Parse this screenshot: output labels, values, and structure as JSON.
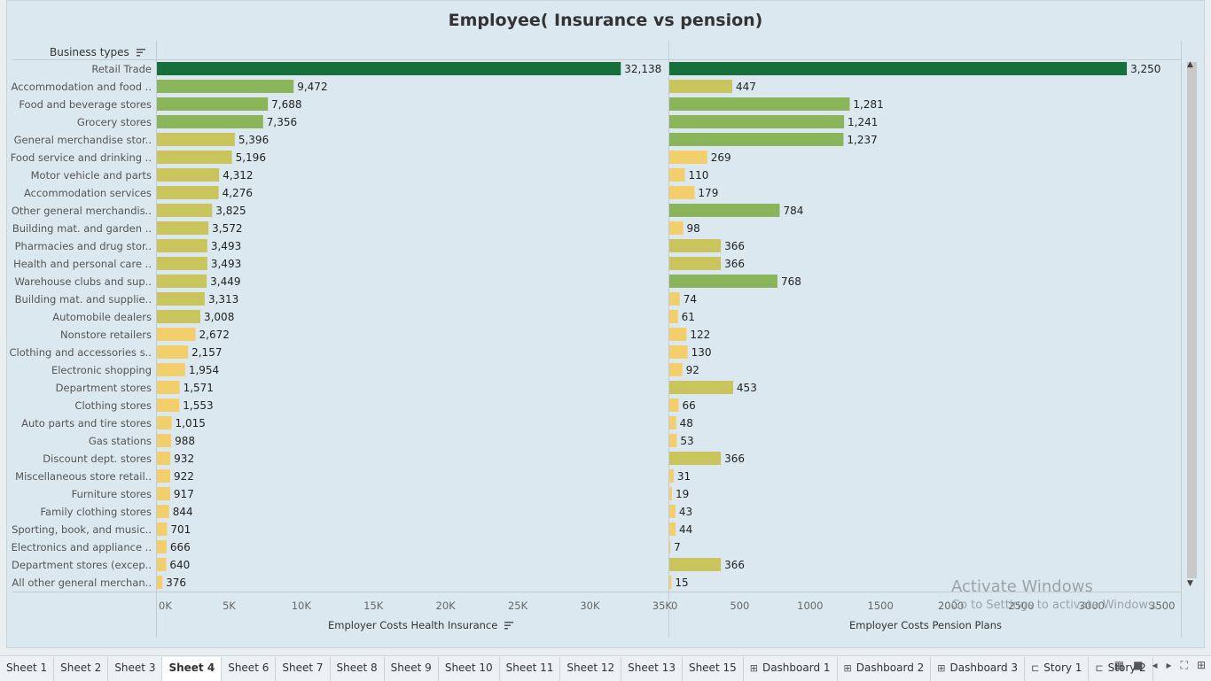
{
  "title": "Employee( Insurance vs pension)",
  "row_header": "Business types",
  "chart_data": {
    "type": "bar",
    "orientation": "horizontal",
    "categories": [
      "Retail Trade",
      "Accommodation and food ..",
      "Food and beverage stores",
      "Grocery stores",
      "General merchandise stor..",
      "Food service and drinking ..",
      "Motor vehicle and parts",
      "Accommodation services",
      "Other general merchandis..",
      "Building mat. and garden ..",
      "Pharmacies and drug stor..",
      "Health and personal care ..",
      "Warehouse clubs and sup..",
      "Building mat. and supplie..",
      "Automobile dealers",
      "Nonstore retailers",
      "Clothing and accessories s..",
      "Electronic shopping",
      "Department stores",
      "Clothing stores",
      "Auto parts and tire stores",
      "Gas stations",
      "Discount dept. stores",
      "Miscellaneous store retail..",
      "Furniture stores",
      "Family clothing stores",
      "Sporting, book, and  music..",
      "Electronics and appliance ..",
      "Department stores (excep..",
      "All other general merchan.."
    ],
    "series": [
      {
        "name": "Employer Costs Health Insurance",
        "values": [
          32138,
          9472,
          7688,
          7356,
          5396,
          5196,
          4312,
          4276,
          3825,
          3572,
          3493,
          3493,
          3449,
          3313,
          3008,
          2672,
          2157,
          1954,
          1571,
          1553,
          1015,
          988,
          932,
          922,
          917,
          844,
          701,
          666,
          640,
          376
        ],
        "labels": [
          "32,138",
          "9,472",
          "7,688",
          "7,356",
          "5,396",
          "5,196",
          "4,312",
          "4,276",
          "3,825",
          "3,572",
          "3,493",
          "3,493",
          "3,449",
          "3,313",
          "3,008",
          "2,672",
          "2,157",
          "1,954",
          "1,571",
          "1,553",
          "1,015",
          "988",
          "932",
          "922",
          "917",
          "844",
          "701",
          "666",
          "640",
          "376"
        ],
        "xlim": [
          0,
          35500
        ],
        "ticks": [
          0,
          5000,
          10000,
          15000,
          20000,
          25000,
          30000,
          35000
        ],
        "tick_labels": [
          "0K",
          "5K",
          "10K",
          "15K",
          "20K",
          "25K",
          "30K",
          "35K"
        ]
      },
      {
        "name": "Employer Costs Pension Plans",
        "values": [
          3250,
          447,
          1281,
          1241,
          1237,
          269,
          110,
          179,
          784,
          98,
          366,
          366,
          768,
          74,
          61,
          122,
          130,
          92,
          453,
          66,
          48,
          53,
          366,
          31,
          19,
          43,
          44,
          7,
          366,
          15
        ],
        "labels": [
          "3,250",
          "447",
          "1,281",
          "1,241",
          "1,237",
          "269",
          "110",
          "179",
          "784",
          "98",
          "366",
          "366",
          "768",
          "74",
          "61",
          "122",
          "130",
          "92",
          "453",
          "66",
          "48",
          "53",
          "366",
          "31",
          "19",
          "43",
          "44",
          "7",
          "366",
          "15"
        ],
        "xlim": [
          0,
          3640
        ],
        "ticks": [
          0,
          500,
          1000,
          1500,
          2000,
          2500,
          3000,
          3500
        ],
        "tick_labels": [
          "0",
          "500",
          "1000",
          "1500",
          "2000",
          "2500",
          "3000",
          "3500"
        ]
      }
    ],
    "colors": {
      "low": "#f2cf6a",
      "mid": "#c9c55c",
      "high": "#8ab55a",
      "max": "#16703c"
    },
    "grid": false
  },
  "watermark": {
    "line1": "Activate Windows",
    "line2": "Go to Settings to activate Windows."
  },
  "tabs": [
    {
      "label": "Sheet 1",
      "icon": ""
    },
    {
      "label": "Sheet 2",
      "icon": ""
    },
    {
      "label": "Sheet 3",
      "icon": ""
    },
    {
      "label": "Sheet 4",
      "icon": "",
      "active": true
    },
    {
      "label": "Sheet 6",
      "icon": ""
    },
    {
      "label": "Sheet 7",
      "icon": ""
    },
    {
      "label": "Sheet 8",
      "icon": ""
    },
    {
      "label": "Sheet 9",
      "icon": ""
    },
    {
      "label": "Sheet 10",
      "icon": ""
    },
    {
      "label": "Sheet 11",
      "icon": ""
    },
    {
      "label": "Sheet 12",
      "icon": ""
    },
    {
      "label": "Sheet 13",
      "icon": ""
    },
    {
      "label": "Sheet 15",
      "icon": ""
    },
    {
      "label": "Dashboard 1",
      "icon": "dashboard-icon"
    },
    {
      "label": "Dashboard 2",
      "icon": "dashboard-icon"
    },
    {
      "label": "Dashboard 3",
      "icon": "dashboard-icon"
    },
    {
      "label": "Story 1",
      "icon": "story-icon"
    },
    {
      "label": "Story 2",
      "icon": "story-icon"
    }
  ]
}
